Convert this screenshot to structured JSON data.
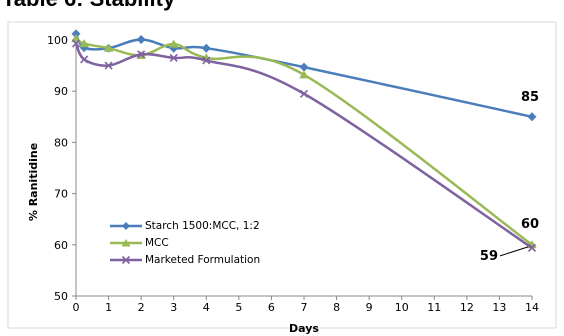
{
  "page": {
    "title": "Table 6: Stability"
  },
  "chart_data": {
    "type": "line",
    "title": "",
    "xlabel": "Days",
    "ylabel": "% Ranitidine",
    "xlim": [
      0,
      14
    ],
    "ylim": [
      50,
      100
    ],
    "x_ticks": [
      "0",
      "1",
      "2",
      "3",
      "4",
      "5",
      "6",
      "7",
      "8",
      "9",
      "10",
      "11",
      "12",
      "13",
      "14"
    ],
    "y_ticks": [
      "50",
      "60",
      "70",
      "80",
      "90",
      "100"
    ],
    "grid": false,
    "legend_position": "bottom-left",
    "series": [
      {
        "name": "Starch 1500:MCC, 1:2",
        "color": "#4a7ebb",
        "marker": "diamond",
        "points": [
          [
            0,
            101.2
          ],
          [
            0.25,
            98.5
          ],
          [
            1,
            98.4
          ],
          [
            2,
            100.1
          ],
          [
            3,
            98.4
          ],
          [
            4,
            98.4
          ],
          [
            7,
            94.7
          ],
          [
            14,
            85
          ]
        ]
      },
      {
        "name": "MCC",
        "color": "#98b954",
        "marker": "triangle",
        "points": [
          [
            0,
            100.3
          ],
          [
            0.25,
            99.3
          ],
          [
            1,
            98.4
          ],
          [
            2,
            97
          ],
          [
            3,
            99.2
          ],
          [
            4,
            96.5
          ],
          [
            7,
            93.2
          ],
          [
            14,
            60
          ]
        ]
      },
      {
        "name": "Marketed Formulation",
        "color": "#7f62a0",
        "marker": "x",
        "points": [
          [
            0,
            99.3
          ],
          [
            0.25,
            96.2
          ],
          [
            1,
            95
          ],
          [
            2,
            97.2
          ],
          [
            3,
            96.5
          ],
          [
            4,
            96
          ],
          [
            7,
            89.5
          ],
          [
            14,
            59.4
          ]
        ]
      }
    ],
    "annotations": [
      {
        "text": "85",
        "x": 14,
        "y": 85
      },
      {
        "text": "60",
        "x": 14,
        "y": 60
      },
      {
        "text": "59",
        "x": 14,
        "y": 59.4
      }
    ]
  }
}
